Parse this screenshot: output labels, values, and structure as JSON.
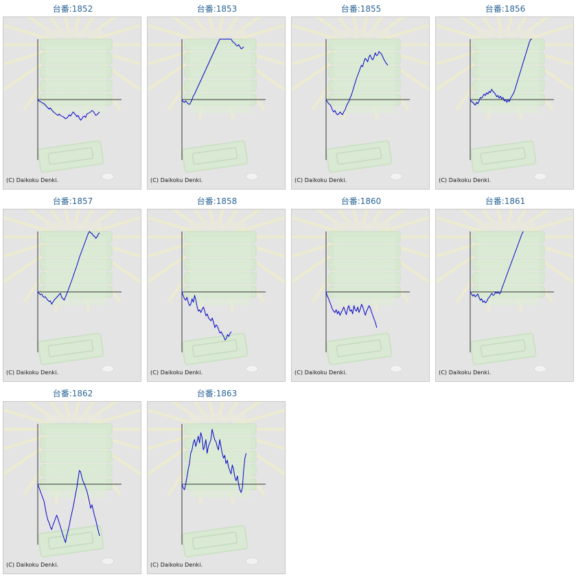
{
  "copyright": "(C) Daikoku Denki.",
  "colors": {
    "title": "#2a6496",
    "line": "#0000c8",
    "axis": "#333333",
    "background": "#e4e4e4"
  },
  "chart_data": [
    {
      "type": "line",
      "title": "台番:1852",
      "values": [
        0,
        -2,
        -3,
        -4,
        -5,
        -6,
        -8,
        -10,
        -12,
        -14,
        -12,
        -15,
        -17,
        -19,
        -20,
        -22,
        -23,
        -21,
        -23,
        -24,
        -25,
        -26,
        -28,
        -27,
        -25,
        -22,
        -24,
        -21,
        -18,
        -20,
        -22,
        -25,
        -23,
        -27,
        -30,
        -28,
        -25,
        -24,
        -26,
        -21,
        -20,
        -19,
        -18,
        -16,
        -17,
        -20,
        -23,
        -22,
        -20,
        -18
      ]
    },
    {
      "type": "line",
      "title": "台番:1853",
      "values": [
        0,
        -3,
        -4,
        -2,
        -4,
        -6,
        -7,
        -4,
        0,
        5,
        8,
        12,
        16,
        20,
        24,
        28,
        32,
        36,
        40,
        44,
        48,
        52,
        56,
        60,
        64,
        68,
        72,
        76,
        80,
        84,
        88,
        90,
        94,
        98,
        103,
        107,
        104,
        100,
        95,
        90,
        85,
        83,
        82,
        79,
        78,
        80,
        77,
        74,
        75,
        77
      ]
    },
    {
      "type": "line",
      "title": "台番:1855",
      "values": [
        0,
        -3,
        -6,
        -7,
        -10,
        -15,
        -18,
        -16,
        -20,
        -22,
        -21,
        -18,
        -20,
        -22,
        -18,
        -15,
        -10,
        -6,
        -3,
        2,
        6,
        12,
        18,
        24,
        30,
        35,
        40,
        45,
        50,
        48,
        55,
        60,
        58,
        55,
        62,
        65,
        60,
        58,
        62,
        68,
        64,
        65,
        70,
        68,
        66,
        62,
        58,
        55,
        52,
        50
      ]
    },
    {
      "type": "line",
      "title": "台番:1856",
      "values": [
        0,
        -3,
        -4,
        -6,
        -8,
        -4,
        -6,
        -2,
        3,
        2,
        5,
        8,
        6,
        10,
        8,
        12,
        10,
        15,
        12,
        10,
        8,
        4,
        6,
        2,
        5,
        1,
        3,
        -2,
        0,
        -4,
        0,
        -3,
        2,
        5,
        8,
        12,
        18,
        24,
        30,
        36,
        42,
        48,
        54,
        60,
        66,
        72,
        78,
        84,
        90,
        95
      ]
    },
    {
      "type": "line",
      "title": "台番:1857",
      "values": [
        0,
        -2,
        -4,
        -3,
        -6,
        -8,
        -7,
        -10,
        -12,
        -14,
        -13,
        -18,
        -15,
        -12,
        -10,
        -8,
        -6,
        -4,
        -2,
        -8,
        -10,
        -12,
        -7,
        -3,
        2,
        7,
        12,
        17,
        22,
        28,
        33,
        38,
        44,
        50,
        55,
        60,
        65,
        70,
        75,
        80,
        85,
        88,
        86,
        85,
        82,
        81,
        78,
        80,
        84,
        86
      ]
    },
    {
      "type": "line",
      "title": "台番:1858",
      "values": [
        0,
        -5,
        -10,
        -12,
        -8,
        -15,
        -20,
        -18,
        -10,
        -15,
        -5,
        -12,
        -22,
        -28,
        -26,
        -30,
        -25,
        -22,
        -28,
        -35,
        -32,
        -38,
        -40,
        -42,
        -38,
        -45,
        -52,
        -48,
        -50,
        -55,
        -60,
        -58,
        -62,
        -65,
        -70,
        -68,
        -62,
        -65,
        -60,
        -58
      ]
    },
    {
      "type": "line",
      "title": "台番:1860",
      "values": [
        0,
        -6,
        -10,
        -15,
        -20,
        -25,
        -28,
        -30,
        -26,
        -32,
        -28,
        -34,
        -30,
        -26,
        -22,
        -28,
        -33,
        -24,
        -20,
        -28,
        -26,
        -32,
        -20,
        -26,
        -28,
        -22,
        -30,
        -25,
        -18,
        -22,
        -28,
        -34,
        -28,
        -24,
        -20,
        -24,
        -30,
        -35,
        -40,
        -45,
        -52
      ]
    },
    {
      "type": "line",
      "title": "台番:1861",
      "values": [
        0,
        -3,
        -6,
        -4,
        -7,
        -5,
        -3,
        -8,
        -12,
        -10,
        -15,
        -13,
        -16,
        -14,
        -10,
        -8,
        -5,
        -2,
        -5,
        -4,
        0,
        -2,
        0,
        -3,
        -1,
        5,
        10,
        15,
        20,
        25,
        30,
        35,
        40,
        45,
        50,
        55,
        60,
        65,
        70,
        75,
        80,
        85,
        90
      ]
    },
    {
      "type": "line",
      "title": "台番:1862",
      "values": [
        0,
        -5,
        -10,
        -15,
        -20,
        -25,
        -35,
        -45,
        -52,
        -56,
        -62,
        -66,
        -60,
        -55,
        -50,
        -45,
        -50,
        -56,
        -62,
        -68,
        -74,
        -80,
        -85,
        -75,
        -68,
        -60,
        -50,
        -42,
        -34,
        -24,
        -14,
        -5,
        8,
        20,
        18,
        10,
        4,
        0,
        -5,
        -10,
        -18,
        -26,
        -35,
        -30,
        -38,
        -46,
        -52,
        -60,
        -68,
        -75
      ]
    },
    {
      "type": "line",
      "title": "台番:1863",
      "values": [
        0,
        -5,
        -8,
        0,
        10,
        22,
        30,
        45,
        50,
        60,
        65,
        55,
        62,
        70,
        60,
        75,
        68,
        50,
        55,
        65,
        45,
        55,
        60,
        65,
        80,
        72,
        65,
        62,
        55,
        50,
        65,
        55,
        45,
        38,
        42,
        30,
        35,
        25,
        20,
        15,
        28,
        22,
        10,
        5,
        12,
        0,
        -8,
        -12,
        -5,
        20,
        38,
        45
      ]
    }
  ]
}
